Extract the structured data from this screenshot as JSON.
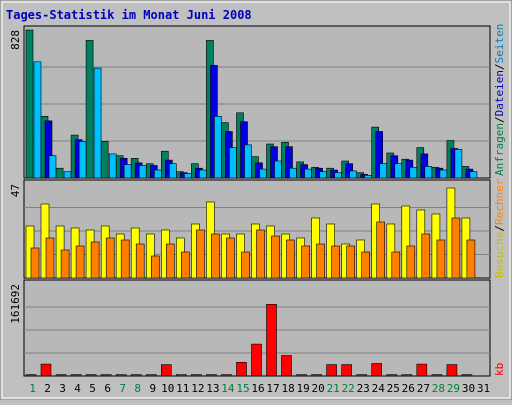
{
  "window": {
    "title": "Tages-Statistik im Monat Juni 2008"
  },
  "axis": {
    "top_max_label": "828",
    "mid_max_label": "47",
    "bottom_max_label": "161692",
    "right_top_labels": [
      {
        "text": "Anfragen",
        "color": "#008040"
      },
      {
        "text": "/",
        "color": "#000000"
      },
      {
        "text": "Dateien",
        "color": "#0000c0"
      },
      {
        "text": "/",
        "color": "#000000"
      },
      {
        "text": "Seiten",
        "color": "#0080c0"
      }
    ],
    "right_mid_labels": [
      {
        "text": "Besuche",
        "color": "#c0c000"
      },
      {
        "text": "/",
        "color": "#000000"
      },
      {
        "text": "Rechner",
        "color": "#ff8000"
      }
    ],
    "right_bottom_label": {
      "text": "kb",
      "color": "#ff0000"
    }
  },
  "chart_data": [
    {
      "type": "bar",
      "title": "Tages-Statistik im Monat Juni 2008",
      "categories": [
        "1",
        "2",
        "3",
        "4",
        "5",
        "6",
        "7",
        "8",
        "9",
        "10",
        "11",
        "12",
        "13",
        "14",
        "15",
        "16",
        "17",
        "18",
        "19",
        "20",
        "21",
        "22",
        "23",
        "24",
        "25",
        "26",
        "27",
        "28",
        "29",
        "30",
        "31"
      ],
      "weekend_days": [
        "1",
        "7",
        "8",
        "14",
        "15",
        "21",
        "22",
        "28",
        "29"
      ],
      "ylim": [
        0,
        828
      ],
      "series": [
        {
          "name": "Anfragen",
          "color": "#008060",
          "values": [
            828,
            345,
            55,
            240,
            770,
            205,
            125,
            110,
            80,
            150,
            35,
            80,
            770,
            310,
            365,
            120,
            190,
            200,
            90,
            60,
            55,
            95,
            30,
            285,
            140,
            105,
            170,
            60,
            210,
            65,
            0
          ]
        },
        {
          "name": "Dateien",
          "color": "#0000e0",
          "values": [
            0,
            320,
            0,
            215,
            0,
            0,
            110,
            85,
            70,
            100,
            30,
            55,
            630,
            260,
            315,
            85,
            175,
            175,
            75,
            55,
            45,
            80,
            20,
            260,
            125,
            100,
            135,
            55,
            165,
            50,
            0
          ]
        },
        {
          "name": "Seiten",
          "color": "#00bfff",
          "values": [
            650,
            125,
            35,
            205,
            615,
            135,
            75,
            70,
            45,
            80,
            25,
            45,
            345,
            170,
            185,
            50,
            95,
            55,
            50,
            35,
            30,
            40,
            15,
            80,
            80,
            60,
            65,
            45,
            160,
            35,
            0
          ]
        }
      ]
    },
    {
      "type": "bar",
      "categories": [
        "1",
        "2",
        "3",
        "4",
        "5",
        "6",
        "7",
        "8",
        "9",
        "10",
        "11",
        "12",
        "13",
        "14",
        "15",
        "16",
        "17",
        "18",
        "19",
        "20",
        "21",
        "22",
        "23",
        "24",
        "25",
        "26",
        "27",
        "28",
        "29",
        "30",
        "31"
      ],
      "ylim": [
        0,
        47
      ],
      "series": [
        {
          "name": "Besuche",
          "color": "#ffff00",
          "values": [
            26,
            37,
            26,
            25,
            24,
            26,
            22,
            25,
            22,
            24,
            20,
            27,
            38,
            22,
            22,
            27,
            26,
            22,
            20,
            30,
            27,
            17,
            19,
            37,
            27,
            36,
            34,
            32,
            45,
            30,
            0
          ]
        },
        {
          "name": "Rechner",
          "color": "#ff8000",
          "values": [
            15,
            20,
            14,
            16,
            18,
            20,
            19,
            17,
            11,
            17,
            13,
            24,
            22,
            20,
            13,
            24,
            21,
            19,
            16,
            17,
            16,
            16,
            13,
            28,
            13,
            16,
            22,
            19,
            30,
            19,
            0
          ]
        }
      ]
    },
    {
      "type": "bar",
      "categories": [
        "1",
        "2",
        "3",
        "4",
        "5",
        "6",
        "7",
        "8",
        "9",
        "10",
        "11",
        "12",
        "13",
        "14",
        "15",
        "16",
        "17",
        "18",
        "19",
        "20",
        "21",
        "22",
        "23",
        "24",
        "25",
        "26",
        "27",
        "28",
        "29",
        "30",
        "31"
      ],
      "ylim": [
        0,
        161692
      ],
      "series": [
        {
          "name": "kb",
          "color": "#ff0000",
          "values": [
            2500,
            21000,
            2500,
            2500,
            2500,
            2500,
            2500,
            2500,
            2500,
            20000,
            2500,
            2500,
            2500,
            2500,
            24000,
            56000,
            126000,
            36000,
            2500,
            2500,
            20000,
            20000,
            2500,
            22000,
            2500,
            2500,
            21000,
            2500,
            20000,
            2500,
            0
          ]
        }
      ]
    }
  ]
}
